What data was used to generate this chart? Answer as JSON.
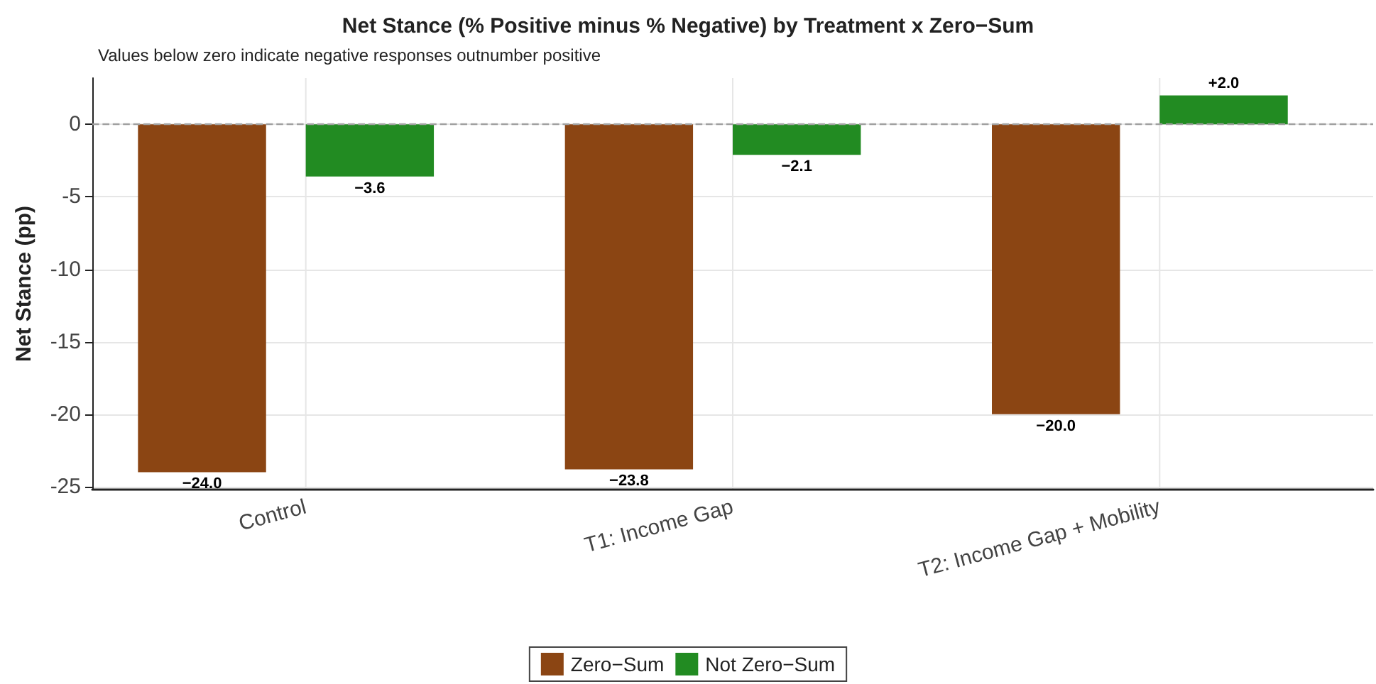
{
  "chart_data": {
    "type": "bar",
    "title": "Net Stance (% Positive minus % Negative) by Treatment x Zero−Sum",
    "subtitle": "Values below zero indicate negative responses outnumber positive",
    "ylabel": "Net Stance (pp)",
    "categories": [
      "Control",
      "T1: Income Gap",
      "T2: Income Gap + Mobility"
    ],
    "series": [
      {
        "name": "Zero−Sum",
        "color": "#8b4513",
        "values": [
          -24.0,
          -23.8,
          -20.0
        ],
        "value_labels": [
          "−24.0",
          "−23.8",
          "−20.0"
        ]
      },
      {
        "name": "Not Zero−Sum",
        "color": "#228b22",
        "values": [
          -3.6,
          -2.1,
          2.0
        ],
        "value_labels": [
          "−3.6",
          "−2.1",
          "+2.0"
        ]
      }
    ],
    "ylim": [
      -25.2,
      3.2
    ],
    "yticks": [
      -25,
      -20,
      -15,
      -10,
      -5,
      0
    ],
    "ref_lines": [
      {
        "axis": "y",
        "value": 0,
        "color": "#a0a0a0",
        "line_style": "dashed"
      }
    ],
    "grid": true,
    "legend": "bottom"
  }
}
